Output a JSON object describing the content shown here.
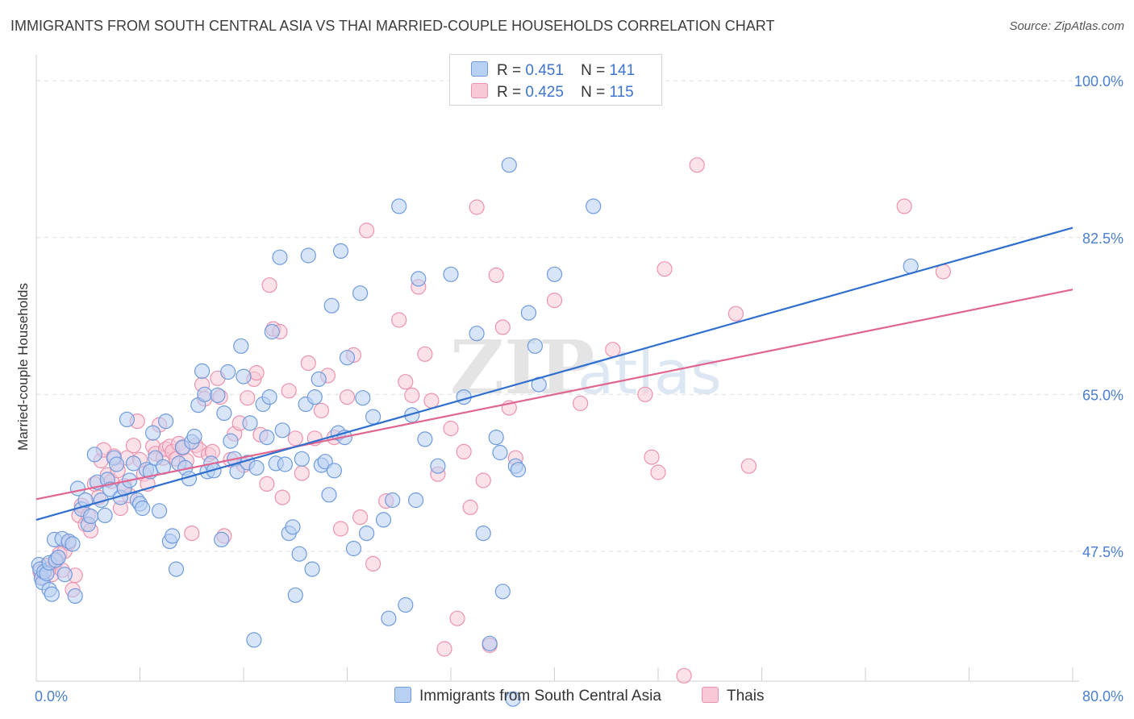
{
  "title": "IMMIGRANTS FROM SOUTH CENTRAL ASIA VS THAI MARRIED-COUPLE HOUSEHOLDS CORRELATION CHART",
  "source": "Source: ZipAtlas.com",
  "watermark": {
    "part1": "ZIP",
    "part2": "atlas"
  },
  "legend": {
    "r_label": "R =",
    "n_label": "N =",
    "series1": {
      "r": "0.451",
      "n": "141"
    },
    "series2": {
      "r": "0.425",
      "n": "115"
    }
  },
  "bottom_legend": {
    "series1": "Immigrants from South Central Asia",
    "series2": "Thais"
  },
  "colors": {
    "blue_fill": "#b8d0f2",
    "blue_stroke": "#6f9bde",
    "blue_line": "#2f6fce",
    "pink_fill": "#f8c8d6",
    "pink_stroke": "#eb93ad",
    "pink_line": "#e0658f",
    "tick_text": "#4a7fd1"
  },
  "chart_data": {
    "type": "scatter",
    "title": "IMMIGRANTS FROM SOUTH CENTRAL ASIA VS THAI MARRIED-COUPLE HOUSEHOLDS CORRELATION CHART",
    "xlabel": "",
    "ylabel": "Married-couple Households",
    "xlim": [
      0,
      80
    ],
    "ylim": [
      33,
      102
    ],
    "x_tick_labels": [
      "0.0%",
      "80.0%"
    ],
    "y_ticks": [
      47.5,
      65.0,
      82.5,
      100.0
    ],
    "y_tick_labels": [
      "47.5%",
      "65.0%",
      "82.5%",
      "100.0%"
    ],
    "grid": true,
    "series": [
      {
        "name": "Immigrants from South Central Asia",
        "R": 0.451,
        "N": 141,
        "trend": {
          "x": [
            0,
            80
          ],
          "y": [
            51.0,
            83.6
          ]
        },
        "points": [
          [
            0.2,
            46.0
          ],
          [
            0.3,
            45.5
          ],
          [
            0.4,
            44.5
          ],
          [
            0.5,
            44.0
          ],
          [
            0.6,
            45.2
          ],
          [
            0.8,
            45.0
          ],
          [
            1.0,
            46.2
          ],
          [
            1.0,
            43.2
          ],
          [
            1.2,
            42.7
          ],
          [
            1.4,
            48.8
          ],
          [
            1.5,
            46.5
          ],
          [
            1.7,
            46.8
          ],
          [
            2.0,
            48.9
          ],
          [
            2.2,
            44.9
          ],
          [
            2.5,
            48.6
          ],
          [
            2.8,
            48.3
          ],
          [
            3.0,
            42.5
          ],
          [
            3.2,
            54.5
          ],
          [
            3.5,
            52.2
          ],
          [
            3.8,
            53.2
          ],
          [
            4.0,
            50.5
          ],
          [
            4.2,
            51.4
          ],
          [
            4.5,
            58.3
          ],
          [
            4.7,
            55.2
          ],
          [
            5.0,
            53.2
          ],
          [
            5.3,
            51.5
          ],
          [
            5.5,
            55.5
          ],
          [
            5.7,
            54.4
          ],
          [
            6.0,
            57.9
          ],
          [
            6.2,
            57.2
          ],
          [
            6.5,
            53.5
          ],
          [
            6.8,
            54.5
          ],
          [
            7.0,
            62.2
          ],
          [
            7.2,
            55.4
          ],
          [
            7.5,
            57.3
          ],
          [
            7.8,
            53.2
          ],
          [
            8.0,
            52.8
          ],
          [
            8.2,
            52.3
          ],
          [
            8.5,
            56.6
          ],
          [
            8.8,
            56.4
          ],
          [
            9.0,
            60.7
          ],
          [
            9.2,
            57.9
          ],
          [
            9.5,
            52.0
          ],
          [
            9.8,
            56.9
          ],
          [
            10.0,
            62.0
          ],
          [
            10.3,
            48.6
          ],
          [
            10.5,
            49.2
          ],
          [
            10.8,
            45.5
          ],
          [
            11.0,
            57.3
          ],
          [
            11.3,
            59.1
          ],
          [
            11.5,
            56.8
          ],
          [
            11.8,
            55.6
          ],
          [
            12.0,
            59.7
          ],
          [
            12.2,
            60.3
          ],
          [
            12.5,
            63.8
          ],
          [
            12.8,
            67.6
          ],
          [
            13.0,
            65.0
          ],
          [
            13.2,
            56.4
          ],
          [
            13.5,
            57.3
          ],
          [
            13.7,
            56.5
          ],
          [
            14.0,
            64.9
          ],
          [
            14.3,
            48.8
          ],
          [
            14.5,
            62.9
          ],
          [
            14.8,
            67.5
          ],
          [
            15.0,
            59.8
          ],
          [
            15.3,
            57.8
          ],
          [
            15.5,
            56.4
          ],
          [
            15.8,
            70.4
          ],
          [
            16.0,
            67.0
          ],
          [
            16.3,
            57.4
          ],
          [
            16.5,
            61.8
          ],
          [
            16.8,
            37.6
          ],
          [
            17.0,
            56.8
          ],
          [
            17.5,
            63.9
          ],
          [
            17.8,
            60.2
          ],
          [
            18.0,
            64.7
          ],
          [
            18.2,
            72.0
          ],
          [
            18.5,
            57.3
          ],
          [
            18.8,
            80.3
          ],
          [
            19.0,
            61.0
          ],
          [
            19.2,
            57.2
          ],
          [
            19.5,
            49.5
          ],
          [
            19.8,
            50.2
          ],
          [
            20.0,
            42.6
          ],
          [
            20.3,
            47.2
          ],
          [
            20.5,
            57.8
          ],
          [
            20.8,
            63.9
          ],
          [
            21.0,
            80.5
          ],
          [
            21.3,
            45.5
          ],
          [
            21.5,
            64.7
          ],
          [
            21.8,
            66.7
          ],
          [
            22.0,
            57.1
          ],
          [
            22.3,
            57.5
          ],
          [
            22.6,
            53.8
          ],
          [
            22.8,
            74.9
          ],
          [
            23.0,
            56.5
          ],
          [
            23.3,
            60.7
          ],
          [
            23.5,
            81.0
          ],
          [
            23.8,
            60.2
          ],
          [
            24.0,
            69.1
          ],
          [
            24.5,
            47.8
          ],
          [
            25.0,
            76.3
          ],
          [
            25.2,
            64.6
          ],
          [
            25.5,
            49.5
          ],
          [
            26.0,
            62.5
          ],
          [
            26.8,
            51.0
          ],
          [
            27.2,
            40.0
          ],
          [
            27.5,
            53.2
          ],
          [
            28.0,
            86.0
          ],
          [
            28.5,
            41.5
          ],
          [
            29.0,
            62.7
          ],
          [
            29.3,
            53.2
          ],
          [
            29.5,
            77.9
          ],
          [
            30.0,
            60.0
          ],
          [
            31.0,
            57.0
          ],
          [
            32.0,
            78.4
          ],
          [
            33.0,
            64.7
          ],
          [
            34.0,
            71.8
          ],
          [
            34.5,
            49.5
          ],
          [
            35.0,
            37.2
          ],
          [
            35.5,
            60.2
          ],
          [
            35.8,
            58.5
          ],
          [
            36.0,
            43.0
          ],
          [
            36.5,
            90.6
          ],
          [
            36.8,
            31.0
          ],
          [
            37.0,
            57.0
          ],
          [
            37.2,
            56.6
          ],
          [
            38.0,
            74.1
          ],
          [
            38.5,
            70.4
          ],
          [
            38.8,
            66.1
          ],
          [
            40.0,
            78.4
          ],
          [
            43.0,
            86.0
          ],
          [
            67.5,
            79.3
          ]
        ]
      },
      {
        "name": "Thais",
        "R": 0.425,
        "N": 115,
        "trend": {
          "x": [
            0,
            80
          ],
          "y": [
            53.3,
            76.7
          ]
        },
        "points": [
          [
            0.3,
            45.2
          ],
          [
            0.5,
            44.6
          ],
          [
            0.8,
            45.9
          ],
          [
            1.0,
            45.5
          ],
          [
            1.2,
            44.9
          ],
          [
            1.5,
            46.3
          ],
          [
            1.8,
            47.2
          ],
          [
            2.0,
            45.4
          ],
          [
            2.2,
            47.5
          ],
          [
            2.5,
            48.4
          ],
          [
            2.8,
            43.2
          ],
          [
            3.0,
            44.8
          ],
          [
            3.3,
            51.5
          ],
          [
            3.5,
            52.6
          ],
          [
            3.8,
            50.5
          ],
          [
            4.0,
            51.5
          ],
          [
            4.2,
            49.8
          ],
          [
            4.5,
            55.0
          ],
          [
            4.8,
            53.5
          ],
          [
            5.0,
            57.6
          ],
          [
            5.2,
            58.8
          ],
          [
            5.5,
            56.0
          ],
          [
            5.8,
            55.3
          ],
          [
            6.0,
            58.1
          ],
          [
            6.3,
            56.5
          ],
          [
            6.5,
            52.3
          ],
          [
            6.8,
            54.8
          ],
          [
            7.0,
            57.9
          ],
          [
            7.2,
            53.7
          ],
          [
            7.5,
            59.3
          ],
          [
            7.8,
            62.0
          ],
          [
            8.0,
            57.7
          ],
          [
            8.3,
            56.1
          ],
          [
            8.6,
            55.0
          ],
          [
            9.0,
            59.2
          ],
          [
            9.2,
            58.4
          ],
          [
            9.5,
            61.6
          ],
          [
            9.8,
            57.9
          ],
          [
            10.0,
            58.9
          ],
          [
            10.3,
            59.2
          ],
          [
            10.5,
            58.6
          ],
          [
            10.8,
            57.8
          ],
          [
            11.0,
            59.5
          ],
          [
            11.3,
            59.0
          ],
          [
            11.6,
            57.6
          ],
          [
            12.0,
            49.5
          ],
          [
            12.3,
            59.3
          ],
          [
            12.6,
            58.8
          ],
          [
            12.8,
            66.1
          ],
          [
            13.0,
            64.5
          ],
          [
            13.3,
            58.3
          ],
          [
            13.6,
            58.6
          ],
          [
            14.0,
            66.8
          ],
          [
            14.2,
            64.7
          ],
          [
            14.5,
            49.2
          ],
          [
            15.0,
            57.7
          ],
          [
            15.3,
            60.6
          ],
          [
            15.7,
            61.8
          ],
          [
            16.0,
            57.1
          ],
          [
            16.3,
            64.6
          ],
          [
            16.8,
            66.7
          ],
          [
            17.0,
            67.4
          ],
          [
            17.3,
            60.5
          ],
          [
            17.8,
            55.0
          ],
          [
            18.0,
            77.2
          ],
          [
            18.3,
            72.3
          ],
          [
            18.8,
            72.0
          ],
          [
            19.0,
            53.5
          ],
          [
            19.5,
            65.4
          ],
          [
            20.0,
            60.1
          ],
          [
            20.5,
            56.2
          ],
          [
            21.0,
            68.5
          ],
          [
            21.5,
            60.1
          ],
          [
            22.0,
            63.2
          ],
          [
            22.5,
            67.1
          ],
          [
            23.0,
            60.2
          ],
          [
            23.5,
            50.0
          ],
          [
            24.0,
            64.7
          ],
          [
            24.5,
            69.4
          ],
          [
            25.0,
            51.3
          ],
          [
            25.5,
            83.3
          ],
          [
            26.0,
            46.1
          ],
          [
            27.0,
            53.1
          ],
          [
            28.0,
            73.3
          ],
          [
            28.5,
            66.4
          ],
          [
            29.0,
            64.9
          ],
          [
            29.5,
            77.0
          ],
          [
            30.0,
            69.5
          ],
          [
            30.5,
            64.3
          ],
          [
            31.0,
            56.1
          ],
          [
            31.5,
            36.6
          ],
          [
            32.0,
            61.2
          ],
          [
            32.5,
            40.0
          ],
          [
            33.0,
            58.6
          ],
          [
            33.5,
            52.4
          ],
          [
            34.0,
            85.9
          ],
          [
            34.5,
            55.4
          ],
          [
            35.0,
            37.0
          ],
          [
            35.5,
            78.3
          ],
          [
            36.0,
            72.5
          ],
          [
            36.5,
            63.5
          ],
          [
            37.0,
            57.9
          ],
          [
            40.0,
            75.5
          ],
          [
            44.5,
            70.0
          ],
          [
            47.0,
            65.0
          ],
          [
            47.5,
            58.0
          ],
          [
            48.0,
            56.3
          ],
          [
            48.5,
            79.0
          ],
          [
            50.0,
            33.6
          ],
          [
            51.0,
            90.6
          ],
          [
            54.0,
            74.0
          ],
          [
            55.0,
            57.0
          ],
          [
            67.0,
            86.0
          ],
          [
            70.0,
            78.7
          ],
          [
            42.0,
            64.0
          ]
        ]
      }
    ]
  },
  "axes_text": {
    "ylabel": "Married-couple Households",
    "x_left": "0.0%",
    "x_right": "80.0%"
  }
}
